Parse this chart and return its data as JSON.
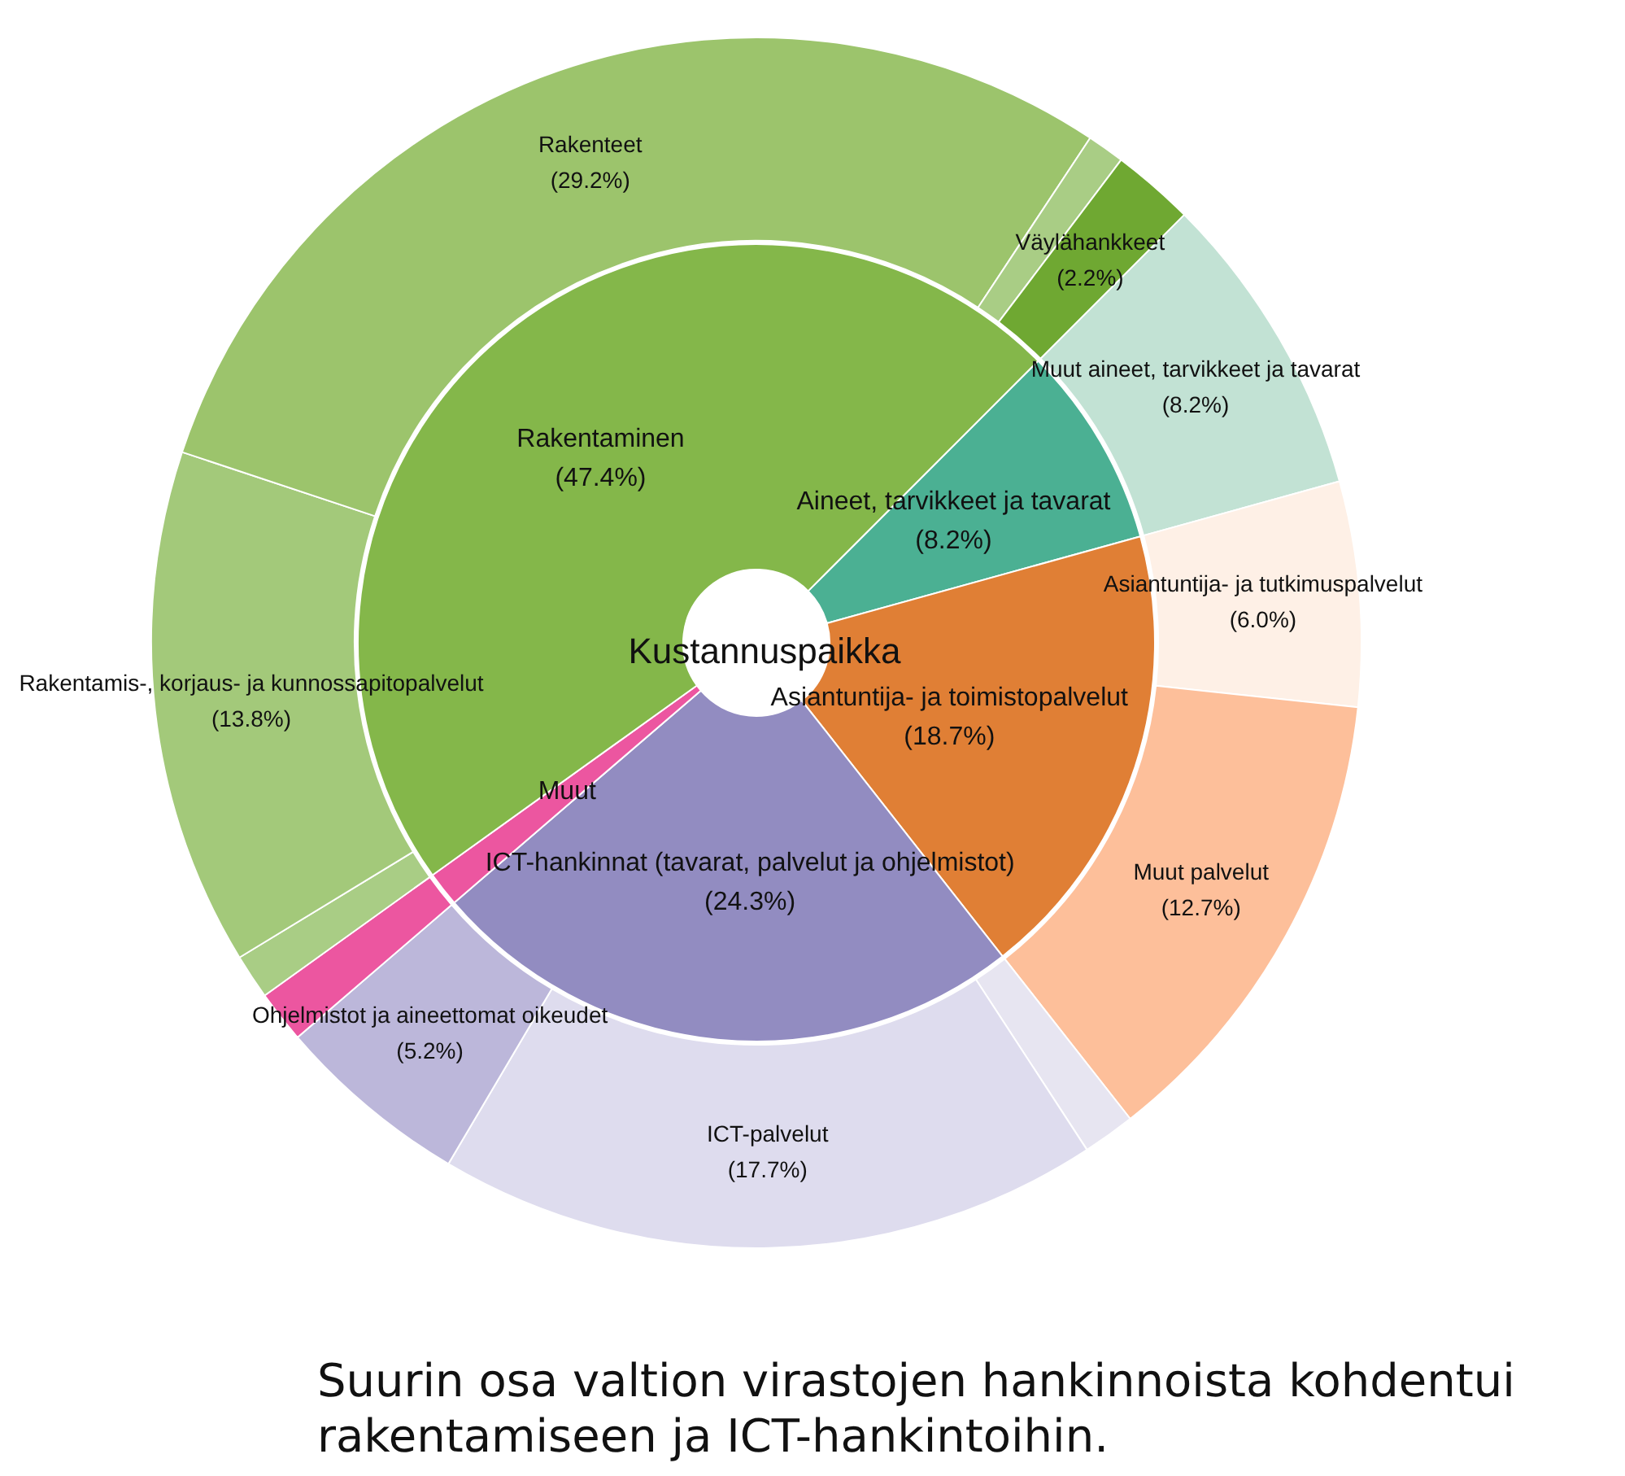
{
  "chart_data": [
    {
      "type": "donut",
      "title": "Kustannuspaikka",
      "categories": [
        "Aineet, tarvikkeet ja tavarat",
        "Asiantuntija- ja toimistopalvelut",
        "ICT-hankinnat (tavarat, palvelut ja ohjelmistot)",
        "Muut",
        "Rakentaminen"
      ],
      "values": [
        8.2,
        18.7,
        24.3,
        1.4,
        47.4
      ],
      "value_labels": [
        "(8.2%)",
        "(18.7%)",
        "(24.3%)",
        null,
        "(47.4%)"
      ],
      "colors": [
        "#4bb093",
        "#e07f35",
        "#928cc1",
        "#ec56a0",
        "#84b74a"
      ]
    },
    {
      "type": "donut",
      "categories": [
        "Muut aineet, tarvikkeet ja tavarat",
        "Asiantuntija- ja tutkimuspalvelut",
        "Muut palvelut",
        null,
        "ICT-palvelut",
        "Ohjelmistot ja aineettomat oikeudet",
        null,
        null,
        "Rakentamis-, korjaus- ja kunnossapitopalvelut",
        "Rakenteet",
        null,
        "Väylähankkeet"
      ],
      "values": [
        8.2,
        6.0,
        12.7,
        1.4,
        17.7,
        5.2,
        1.4,
        1.2,
        13.8,
        29.2,
        1.0,
        2.2
      ],
      "value_labels": [
        "(8.2%)",
        "(6.0%)",
        "(12.7%)",
        null,
        "(17.7%)",
        "(5.2%)",
        null,
        null,
        "(13.8%)",
        "(29.2%)",
        null,
        "(2.2%)"
      ],
      "colors": [
        "#c2e2d4",
        "#fef0e6",
        "#fdbf9a",
        "#e7e5f1",
        "#dedcee",
        "#bcb7da",
        "#ec56a0",
        "#a9cd85",
        "#a3c97a",
        "#9cc46c",
        "#a9cd85",
        "#6fa832"
      ],
      "annotations": [
        "Suurin osa valtion virastojen hankinnoista kohdentui rakentamiseen ja ICT-hankintoihin."
      ]
    }
  ]
}
